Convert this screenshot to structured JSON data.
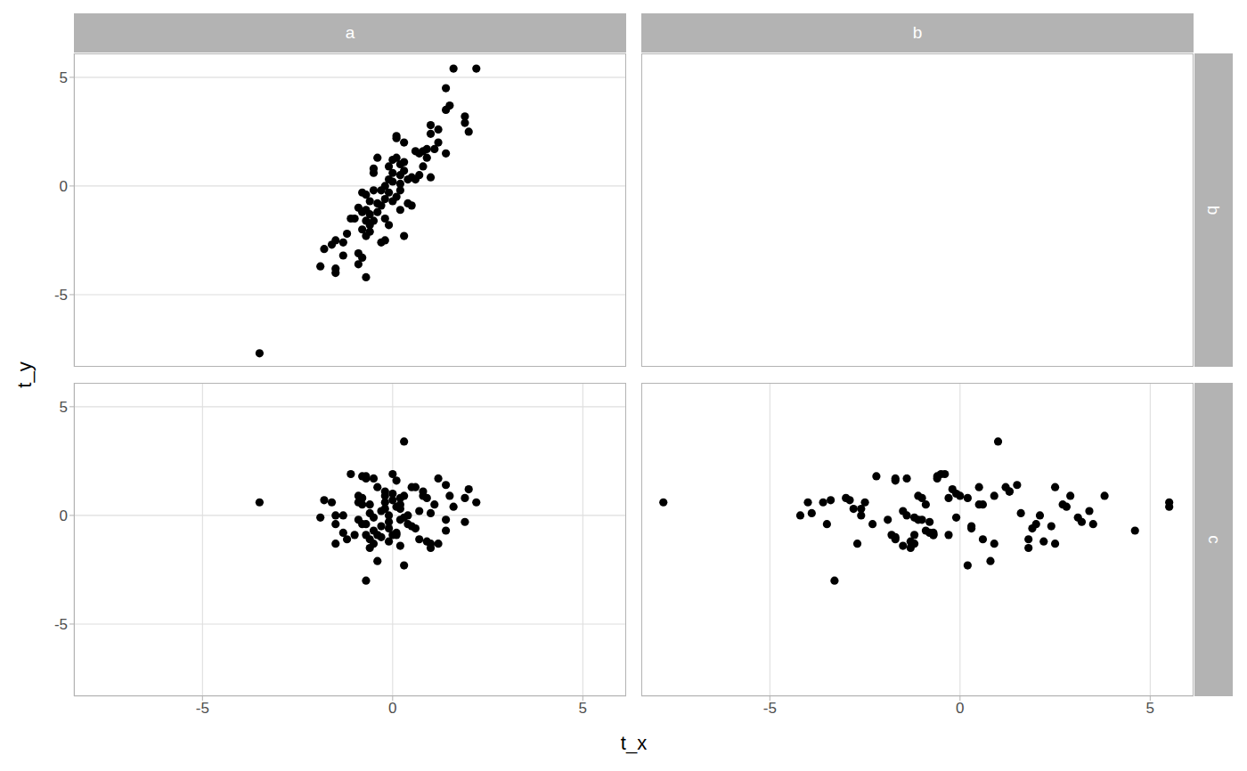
{
  "chart_data": {
    "type": "scatter",
    "x_label": "t_x",
    "y_label": "t_y",
    "color": "#000000",
    "marker": "circle",
    "grid": true,
    "facets": {
      "columns": [
        "a",
        "b"
      ],
      "rows": [
        "b",
        "c"
      ]
    },
    "xlim": [
      -8.38,
      6.14
    ],
    "ylim": [
      -8.32,
      6.1
    ],
    "xticks": [
      -5,
      0,
      5
    ],
    "yticks": [
      -5,
      0,
      5
    ],
    "panels": [
      {
        "column": "a",
        "row": "b",
        "x": [
          1.6,
          2.2,
          1.4,
          1.5,
          1.4,
          1.9,
          1.9,
          2.0,
          1.0,
          1.0,
          1.2,
          1.2,
          1.4,
          1.1,
          0.9,
          0.8,
          0.7,
          0.8,
          0.7,
          0.6,
          0.5,
          0.4,
          0.2,
          0.3,
          0.1,
          0.1,
          0.3,
          0.1,
          0.0,
          0.2,
          0.3,
          -0.1,
          0.0,
          -0.1,
          0.1,
          -0.2,
          -0.3,
          -0.2,
          -0.1,
          -0.2,
          -0.3,
          -0.4,
          -0.5,
          -0.5,
          -0.5,
          -0.8,
          -0.7,
          -0.6,
          -0.7,
          -0.8,
          -0.6,
          -0.9,
          -1.0,
          -0.7,
          -0.6,
          -0.8,
          -0.7,
          -0.6,
          -0.5,
          -0.4,
          -0.3,
          -0.1,
          0.0,
          0.2,
          0.4,
          0.5,
          -1.1,
          -1.2,
          -1.3,
          -1.5,
          -1.6,
          -1.8,
          -1.9,
          -1.5,
          -1.5,
          -1.3,
          -0.9,
          -0.8,
          -0.9,
          -0.7,
          -3.5,
          0.9,
          1.0,
          0.6,
          0.3,
          0.2,
          -0.2,
          0.0,
          -0.4,
          0.2
        ],
        "y": [
          5.4,
          5.4,
          4.5,
          3.7,
          3.5,
          3.2,
          2.9,
          2.5,
          2.8,
          2.4,
          2.6,
          2.0,
          1.5,
          1.7,
          1.7,
          1.6,
          1.5,
          0.9,
          0.5,
          0.3,
          0.4,
          -0.8,
          -1.1,
          -2.3,
          2.3,
          2.2,
          2.0,
          1.3,
          1.2,
          1.0,
          0.7,
          0.3,
          0.2,
          -0.3,
          -0.5,
          -0.6,
          -0.9,
          -1.5,
          -1.8,
          -2.5,
          -2.6,
          1.3,
          0.8,
          0.6,
          -0.2,
          -0.3,
          -0.4,
          -0.7,
          -1.1,
          -1.2,
          -1.3,
          -1.0,
          -1.5,
          -1.6,
          -1.8,
          -2.0,
          -2.3,
          -2.1,
          -1.6,
          -1.2,
          -0.2,
          0.9,
          0.6,
          0.5,
          0.3,
          -0.9,
          -1.5,
          -2.2,
          -2.6,
          -2.5,
          -2.7,
          -2.9,
          -3.7,
          -3.8,
          -4.0,
          -3.2,
          -3.1,
          -3.3,
          -3.6,
          -4.2,
          -7.7,
          1.3,
          0.4,
          1.6,
          1.1,
          0.1,
          0.0,
          -0.7,
          -0.8,
          -0.2
        ]
      },
      {
        "column": "b",
        "row": "b",
        "x": [],
        "y": []
      },
      {
        "column": "a",
        "row": "c",
        "x": [
          1.6,
          2.2,
          1.4,
          1.5,
          1.4,
          1.9,
          1.9,
          2.0,
          1.0,
          1.0,
          1.2,
          1.2,
          1.4,
          1.1,
          0.9,
          0.8,
          0.7,
          0.8,
          0.7,
          0.6,
          0.5,
          0.4,
          0.2,
          0.3,
          0.1,
          0.1,
          0.3,
          0.1,
          0.0,
          0.2,
          0.3,
          -0.1,
          0.0,
          -0.1,
          0.1,
          -0.2,
          -0.3,
          -0.2,
          -0.1,
          -0.2,
          -0.3,
          -0.4,
          -0.5,
          -0.5,
          -0.5,
          -0.8,
          -0.7,
          -0.6,
          -0.7,
          -0.8,
          -0.6,
          -0.9,
          -1.0,
          -0.7,
          -0.6,
          -0.8,
          -0.7,
          -0.6,
          -0.5,
          -0.4,
          -0.3,
          -0.1,
          0.0,
          0.2,
          0.4,
          0.5,
          -1.1,
          -1.2,
          -1.3,
          -1.5,
          -1.6,
          -1.8,
          -1.9,
          -1.5,
          -1.5,
          -1.3,
          -0.9,
          -0.8,
          -0.9,
          -0.7,
          -3.5,
          0.9,
          1.0,
          0.6,
          0.3,
          0.2,
          -0.2,
          0.0,
          -0.4,
          0.2
        ],
        "y": [
          0.4,
          0.6,
          -0.2,
          0.9,
          -0.7,
          -0.3,
          0.8,
          1.2,
          -1.5,
          0.1,
          1.7,
          -1.3,
          1.4,
          0.5,
          -1.2,
          0.9,
          -1.1,
          1.1,
          0.2,
          -0.6,
          1.3,
          -0.4,
          0.8,
          3.4,
          1.6,
          -0.9,
          0.9,
          0.4,
          1.9,
          -0.2,
          -2.3,
          -1.2,
          0.7,
          0.0,
          -0.8,
          1.1,
          -0.5,
          0.3,
          -0.3,
          0.6,
          -1.0,
          1.3,
          -1.3,
          1.7,
          -0.1,
          0.8,
          -0.4,
          0.1,
          1.8,
          0.5,
          -1.5,
          -0.2,
          -0.9,
          -0.9,
          0.5,
          -0.4,
          -3.0,
          -1.1,
          -0.7,
          -2.1,
          0.2,
          -0.6,
          1.0,
          -1.4,
          0.0,
          -0.5,
          1.9,
          -1.1,
          0.0,
          -0.4,
          0.6,
          0.7,
          -0.1,
          0.0,
          -1.3,
          -0.8,
          0.9,
          1.8,
          0.6,
          1.7,
          0.6,
          0.8,
          -1.3,
          1.3,
          -0.1,
          0.3,
          0.9,
          -0.9,
          -0.9,
          0.5
        ]
      },
      {
        "column": "b",
        "row": "c",
        "x": [
          2.8,
          5.5,
          -1.1,
          2.9,
          4.6,
          3.2,
          -0.3,
          -0.2,
          1.8,
          1.6,
          -1.7,
          0.9,
          1.5,
          2.7,
          2.2,
          3.8,
          1.8,
          1.3,
          3.4,
          0.3,
          1.2,
          2.0,
          -3.0,
          1.0,
          -1.7,
          -0.3,
          0.0,
          5.5,
          -0.4,
          -1.0,
          0.2,
          -1.3,
          -3.4,
          -4.2,
          -0.7,
          1.3,
          2.4,
          -2.6,
          -0.8,
          -3.6,
          -1.7,
          0.5,
          -1.2,
          -1.4,
          -0.1,
          -1.0,
          -2.3,
          -3.9,
          -2.2,
          -0.9,
          -1.3,
          -1.9,
          -0.7,
          -1.8,
          0.5,
          3.5,
          -3.3,
          0.6,
          -0.9,
          0.8,
          -1.5,
          1.9,
          -0.1,
          -1.5,
          -2.6,
          0.3,
          -0.5,
          -1.7,
          -1.4,
          -3.5,
          -4.0,
          -2.9,
          -1.2,
          2.1,
          -2.7,
          -0.8,
          -1.1,
          -0.6,
          -2.5,
          -0.6,
          -7.8,
          0.2,
          2.5,
          2.5,
          3.1,
          -2.8,
          0.9,
          -0.7,
          -1.2,
          0.6
        ],
        "y": [
          0.4,
          0.6,
          -0.2,
          0.9,
          -0.7,
          -0.3,
          0.8,
          1.2,
          -1.5,
          0.1,
          1.7,
          -1.3,
          1.4,
          0.5,
          -1.2,
          0.9,
          -1.1,
          1.1,
          0.2,
          -0.6,
          1.3,
          -0.4,
          0.8,
          3.4,
          1.6,
          -0.9,
          0.9,
          0.4,
          1.9,
          -0.2,
          -2.3,
          -1.2,
          0.7,
          0.0,
          -0.8,
          1.1,
          -0.5,
          0.3,
          -0.3,
          0.6,
          -1.0,
          1.3,
          -1.3,
          1.7,
          -0.1,
          0.8,
          -0.4,
          0.1,
          1.8,
          0.5,
          -1.5,
          -0.2,
          -0.9,
          -0.9,
          0.5,
          -0.4,
          -3.0,
          -1.1,
          -0.7,
          -2.1,
          0.2,
          -0.6,
          1.0,
          -1.4,
          0.0,
          -0.5,
          1.9,
          -1.1,
          0.0,
          -0.4,
          0.6,
          0.7,
          -0.1,
          0.0,
          -1.3,
          -0.8,
          0.9,
          1.8,
          0.6,
          1.7,
          0.6,
          0.8,
          -1.3,
          1.3,
          -0.1,
          0.3,
          0.9,
          -0.9,
          -0.9,
          0.5
        ]
      }
    ]
  }
}
